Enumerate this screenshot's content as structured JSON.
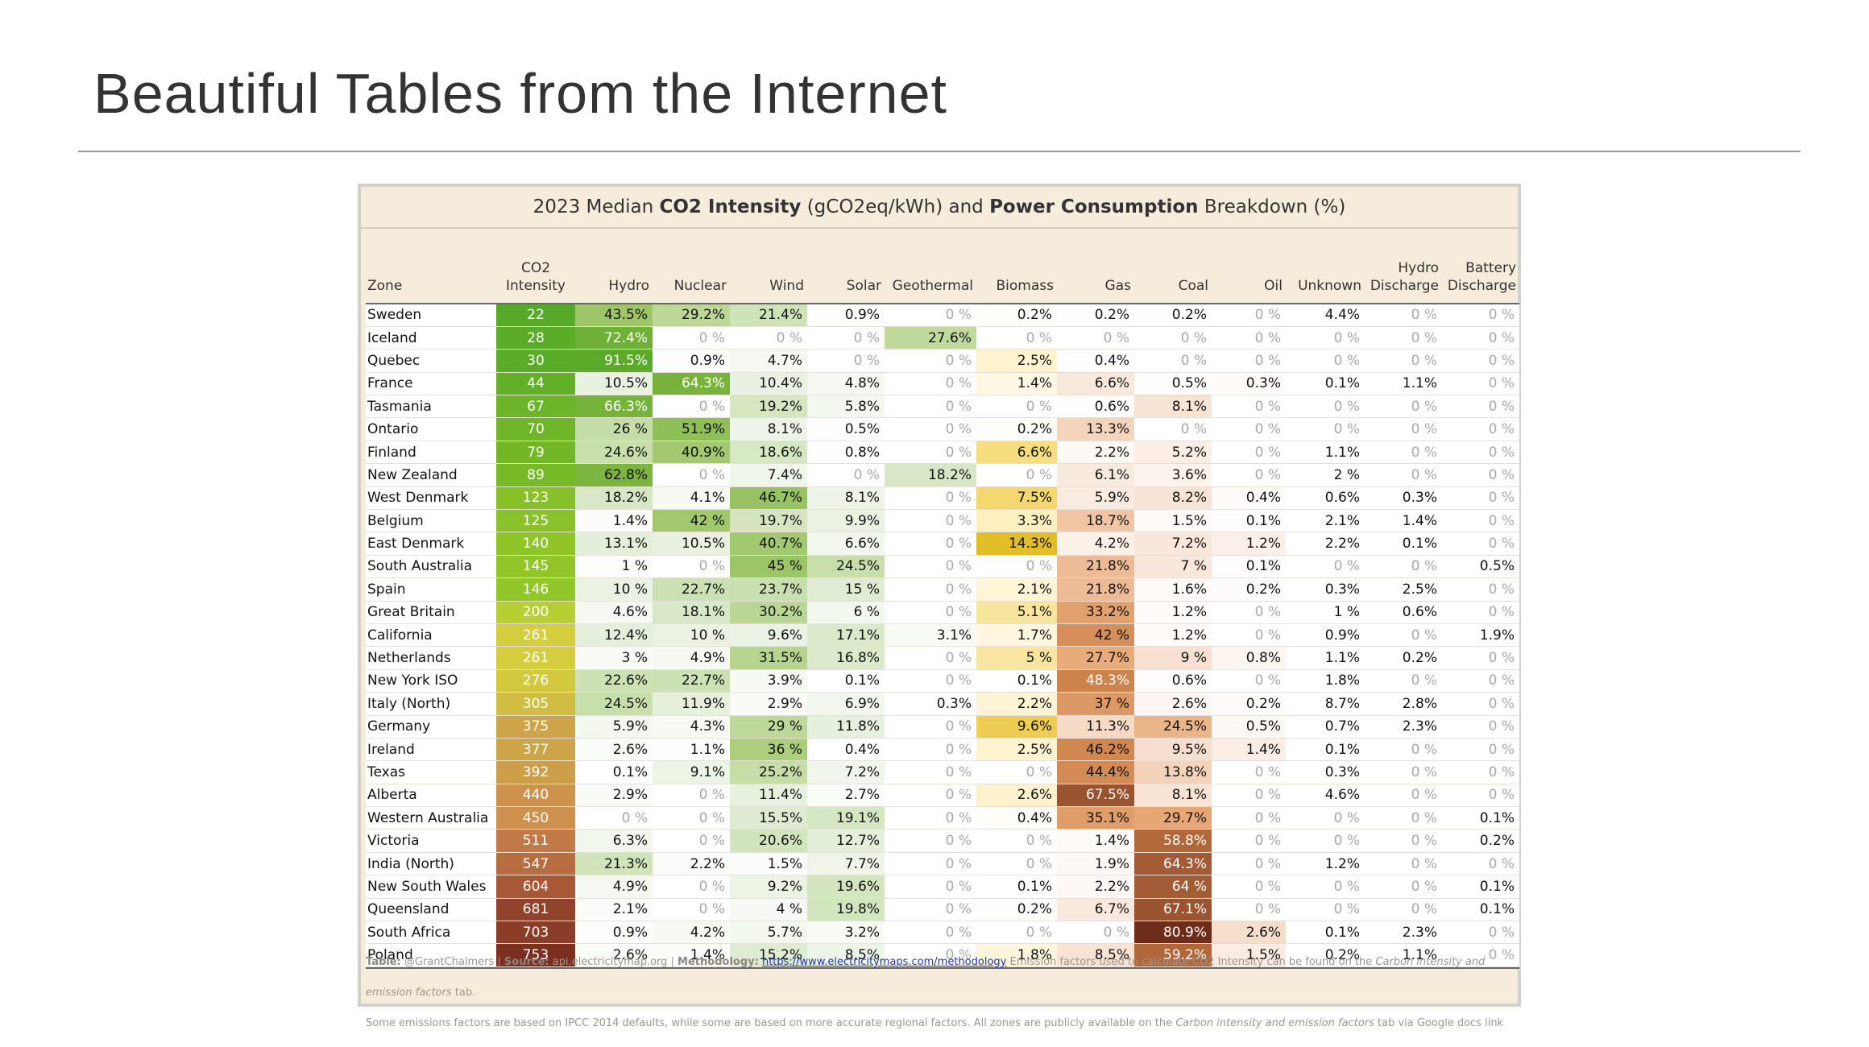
{
  "slide": {
    "title": "Beautiful Tables from the Internet"
  },
  "table": {
    "title_plain_1": "2023 Median ",
    "title_bold_1": "CO2 Intensity",
    "title_plain_2": " (gCO2eq/kWh) and ",
    "title_bold_2": "Power Consumption",
    "title_plain_3": " Breakdown (%)",
    "headers": [
      {
        "line1": "",
        "line2": "Zone"
      },
      {
        "line1": "CO2",
        "line2": "Intensity"
      },
      {
        "line1": "",
        "line2": "Hydro"
      },
      {
        "line1": "",
        "line2": "Nuclear"
      },
      {
        "line1": "",
        "line2": "Wind"
      },
      {
        "line1": "",
        "line2": "Solar"
      },
      {
        "line1": "",
        "line2": "Geothermal"
      },
      {
        "line1": "",
        "line2": "Biomass"
      },
      {
        "line1": "",
        "line2": "Gas"
      },
      {
        "line1": "",
        "line2": "Coal"
      },
      {
        "line1": "",
        "line2": "Oil"
      },
      {
        "line1": "",
        "line2": "Unknown"
      },
      {
        "line1": "Hydro",
        "line2": "Discharge"
      },
      {
        "line1": "Battery",
        "line2": "Discharge"
      }
    ],
    "rows": [
      [
        "Sweden",
        "22",
        "43.5%",
        "29.2%",
        "21.4%",
        "0.9%",
        "0 %",
        "0.2%",
        "0.2%",
        "0.2%",
        "0 %",
        "4.4%",
        "0 %",
        "0 %"
      ],
      [
        "Iceland",
        "28",
        "72.4%",
        "0 %",
        "0 %",
        "0 %",
        "27.6%",
        "0 %",
        "0 %",
        "0 %",
        "0 %",
        "0 %",
        "0 %",
        "0 %"
      ],
      [
        "Quebec",
        "30",
        "91.5%",
        "0.9%",
        "4.7%",
        "0 %",
        "0 %",
        "2.5%",
        "0.4%",
        "0 %",
        "0 %",
        "0 %",
        "0 %",
        "0 %"
      ],
      [
        "France",
        "44",
        "10.5%",
        "64.3%",
        "10.4%",
        "4.8%",
        "0 %",
        "1.4%",
        "6.6%",
        "0.5%",
        "0.3%",
        "0.1%",
        "1.1%",
        "0 %"
      ],
      [
        "Tasmania",
        "67",
        "66.3%",
        "0 %",
        "19.2%",
        "5.8%",
        "0 %",
        "0 %",
        "0.6%",
        "8.1%",
        "0 %",
        "0 %",
        "0 %",
        "0 %"
      ],
      [
        "Ontario",
        "70",
        "26 %",
        "51.9%",
        "8.1%",
        "0.5%",
        "0 %",
        "0.2%",
        "13.3%",
        "0 %",
        "0 %",
        "0 %",
        "0 %",
        "0 %"
      ],
      [
        "Finland",
        "79",
        "24.6%",
        "40.9%",
        "18.6%",
        "0.8%",
        "0 %",
        "6.6%",
        "2.2%",
        "5.2%",
        "0 %",
        "1.1%",
        "0 %",
        "0 %"
      ],
      [
        "New Zealand",
        "89",
        "62.8%",
        "0 %",
        "7.4%",
        "0 %",
        "18.2%",
        "0 %",
        "6.1%",
        "3.6%",
        "0 %",
        "2 %",
        "0 %",
        "0 %"
      ],
      [
        "West Denmark",
        "123",
        "18.2%",
        "4.1%",
        "46.7%",
        "8.1%",
        "0 %",
        "7.5%",
        "5.9%",
        "8.2%",
        "0.4%",
        "0.6%",
        "0.3%",
        "0 %"
      ],
      [
        "Belgium",
        "125",
        "1.4%",
        "42 %",
        "19.7%",
        "9.9%",
        "0 %",
        "3.3%",
        "18.7%",
        "1.5%",
        "0.1%",
        "2.1%",
        "1.4%",
        "0 %"
      ],
      [
        "East Denmark",
        "140",
        "13.1%",
        "10.5%",
        "40.7%",
        "6.6%",
        "0 %",
        "14.3%",
        "4.2%",
        "7.2%",
        "1.2%",
        "2.2%",
        "0.1%",
        "0 %"
      ],
      [
        "South Australia",
        "145",
        "1 %",
        "0 %",
        "45 %",
        "24.5%",
        "0 %",
        "0 %",
        "21.8%",
        "7 %",
        "0.1%",
        "0 %",
        "0 %",
        "0.5%"
      ],
      [
        "Spain",
        "146",
        "10 %",
        "22.7%",
        "23.7%",
        "15 %",
        "0 %",
        "2.1%",
        "21.8%",
        "1.6%",
        "0.2%",
        "0.3%",
        "2.5%",
        "0 %"
      ],
      [
        "Great Britain",
        "200",
        "4.6%",
        "18.1%",
        "30.2%",
        "6 %",
        "0 %",
        "5.1%",
        "33.2%",
        "1.2%",
        "0 %",
        "1 %",
        "0.6%",
        "0 %"
      ],
      [
        "California",
        "261",
        "12.4%",
        "10 %",
        "9.6%",
        "17.1%",
        "3.1%",
        "1.7%",
        "42 %",
        "1.2%",
        "0 %",
        "0.9%",
        "0 %",
        "1.9%"
      ],
      [
        "Netherlands",
        "261",
        "3 %",
        "4.9%",
        "31.5%",
        "16.8%",
        "0 %",
        "5 %",
        "27.7%",
        "9 %",
        "0.8%",
        "1.1%",
        "0.2%",
        "0 %"
      ],
      [
        "New York ISO",
        "276",
        "22.6%",
        "22.7%",
        "3.9%",
        "0.1%",
        "0 %",
        "0.1%",
        "48.3%",
        "0.6%",
        "0 %",
        "1.8%",
        "0 %",
        "0 %"
      ],
      [
        "Italy (North)",
        "305",
        "24.5%",
        "11.9%",
        "2.9%",
        "6.9%",
        "0.3%",
        "2.2%",
        "37 %",
        "2.6%",
        "0.2%",
        "8.7%",
        "2.8%",
        "0 %"
      ],
      [
        "Germany",
        "375",
        "5.9%",
        "4.3%",
        "29 %",
        "11.8%",
        "0 %",
        "9.6%",
        "11.3%",
        "24.5%",
        "0.5%",
        "0.7%",
        "2.3%",
        "0 %"
      ],
      [
        "Ireland",
        "377",
        "2.6%",
        "1.1%",
        "36 %",
        "0.4%",
        "0 %",
        "2.5%",
        "46.2%",
        "9.5%",
        "1.4%",
        "0.1%",
        "0 %",
        "0 %"
      ],
      [
        "Texas",
        "392",
        "0.1%",
        "9.1%",
        "25.2%",
        "7.2%",
        "0 %",
        "0 %",
        "44.4%",
        "13.8%",
        "0 %",
        "0.3%",
        "0 %",
        "0 %"
      ],
      [
        "Alberta",
        "440",
        "2.9%",
        "0 %",
        "11.4%",
        "2.7%",
        "0 %",
        "2.6%",
        "67.5%",
        "8.1%",
        "0 %",
        "4.6%",
        "0 %",
        "0 %"
      ],
      [
        "Western Australia",
        "450",
        "0 %",
        "0 %",
        "15.5%",
        "19.1%",
        "0 %",
        "0.4%",
        "35.1%",
        "29.7%",
        "0 %",
        "0 %",
        "0 %",
        "0.1%"
      ],
      [
        "Victoria",
        "511",
        "6.3%",
        "0 %",
        "20.6%",
        "12.7%",
        "0 %",
        "0 %",
        "1.4%",
        "58.8%",
        "0 %",
        "0 %",
        "0 %",
        "0.2%"
      ],
      [
        "India (North)",
        "547",
        "21.3%",
        "2.2%",
        "1.5%",
        "7.7%",
        "0 %",
        "0 %",
        "1.9%",
        "64.3%",
        "0 %",
        "1.2%",
        "0 %",
        "0 %"
      ],
      [
        "New South Wales",
        "604",
        "4.9%",
        "0 %",
        "9.2%",
        "19.6%",
        "0 %",
        "0.1%",
        "2.2%",
        "64 %",
        "0 %",
        "0 %",
        "0 %",
        "0.1%"
      ],
      [
        "Queensland",
        "681",
        "2.1%",
        "0 %",
        "4 %",
        "19.8%",
        "0 %",
        "0.2%",
        "6.7%",
        "67.1%",
        "0 %",
        "0 %",
        "0 %",
        "0.1%"
      ],
      [
        "South Africa",
        "703",
        "0.9%",
        "4.2%",
        "5.7%",
        "3.2%",
        "0 %",
        "0 %",
        "0 %",
        "80.9%",
        "2.6%",
        "0.1%",
        "2.3%",
        "0 %"
      ],
      [
        "Poland",
        "753",
        "2.6%",
        "1.4%",
        "15.2%",
        "8.5%",
        "0 %",
        "1.8%",
        "8.5%",
        "59.2%",
        "1.5%",
        "0.2%",
        "1.1%",
        "0 %"
      ]
    ],
    "footer": {
      "table_label": "Table:",
      "table_credit": " @GrantChalmers | ",
      "source_label": "Source:",
      "source_text": " api.electricitymap.org | ",
      "method_label": "Methodology:",
      "method_link": "https://www.electricitymaps.com/methodology",
      "line1_rest_a": " Emission factors used to calculate CO2 Intensity can be found on the ",
      "line1_italic": "Carbon intensity and emission factors",
      "line1_rest_b": " tab.",
      "line2_a": "Some emissions factors are based on IPCC 2014 defaults, while some are based on more accurate regional factors. All zones are publicly available on the ",
      "line2_italic": "Carbon intensity and emission factors",
      "line2_b": " tab via Google docs link"
    }
  }
}
